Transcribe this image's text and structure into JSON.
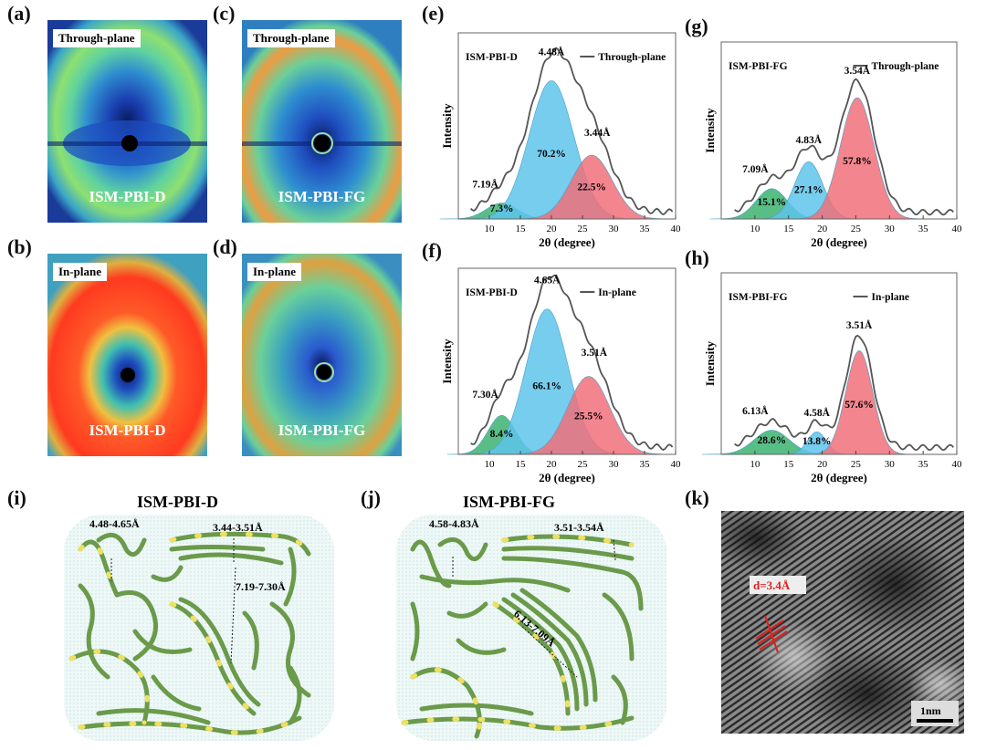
{
  "panels": {
    "a": {
      "label": "(a)",
      "tag": "Through-plane",
      "name": "ISM-PBI-D"
    },
    "b": {
      "label": "(b)",
      "tag": "In-plane",
      "name": "ISM-PBI-D"
    },
    "c": {
      "label": "(c)",
      "tag": "Through-plane",
      "name": "ISM-PBI-FG"
    },
    "d": {
      "label": "(d)",
      "tag": "In-plane",
      "name": "ISM-PBI-FG"
    },
    "e": {
      "label": "(e)"
    },
    "f": {
      "label": "(f)"
    },
    "g": {
      "label": "(g)"
    },
    "h": {
      "label": "(h)"
    },
    "i": {
      "label": "(i)",
      "title": "ISM-PBI-D",
      "d1": "4.48-4.65Å",
      "d2": "3.44-3.51Å",
      "d3": "7.19-7.30Å"
    },
    "j": {
      "label": "(j)",
      "title": "ISM-PBI-FG",
      "d1": "4.58-4.83Å",
      "d2": "3.51-3.54Å",
      "d3": "6.13-7.09Å"
    },
    "k": {
      "label": "(k)",
      "spacing": "d=3.4Å",
      "scale": "1nm"
    }
  },
  "colors": {
    "green": "#3cb371",
    "blue": "#5ec4ea",
    "red": "#f0707a",
    "curve": "#555555"
  },
  "chart_data": [
    {
      "id": "e",
      "type": "line",
      "sample": "ISM-PBI-D",
      "legend": "Through-plane",
      "xlabel": "2θ (degree)",
      "ylabel": "Intensity",
      "xlim": [
        5,
        40
      ],
      "xticks": [
        "10",
        "15",
        "20",
        "25",
        "30",
        "35",
        "40"
      ],
      "peaks": [
        {
          "center": 12,
          "height": 0.09,
          "sigma": 2.5,
          "color": "green",
          "label": "7.3%"
        },
        {
          "center": 20,
          "height": 0.78,
          "sigma": 3.6,
          "color": "blue",
          "label": "70.2%"
        },
        {
          "center": 26.5,
          "height": 0.36,
          "sigma": 3.3,
          "color": "red",
          "label": "22.5%"
        }
      ],
      "d_labels": [
        "7.19Å",
        "4.48Å",
        "3.44Å"
      ]
    },
    {
      "id": "f",
      "type": "line",
      "sample": "ISM-PBI-D",
      "legend": "In-plane",
      "xlabel": "2θ (degree)",
      "ylabel": "Intensity",
      "xlim": [
        5,
        40
      ],
      "xticks": [
        "10",
        "15",
        "20",
        "25",
        "30",
        "35",
        "40"
      ],
      "peaks": [
        {
          "center": 12,
          "height": 0.22,
          "sigma": 2.2,
          "color": "green",
          "label": "8.4%"
        },
        {
          "center": 19.3,
          "height": 0.82,
          "sigma": 3.4,
          "color": "blue",
          "label": "66.1%"
        },
        {
          "center": 26,
          "height": 0.44,
          "sigma": 3.4,
          "color": "red",
          "label": "25.5%"
        }
      ],
      "d_labels": [
        "7.30Å",
        "4.65Å",
        "3.51Å"
      ]
    },
    {
      "id": "g",
      "type": "line",
      "sample": "ISM-PBI-FG",
      "legend": "Through-plane",
      "xlabel": "2θ (degree)",
      "ylabel": "Intensity",
      "xlim": [
        5,
        40
      ],
      "xticks": [
        "10",
        "15",
        "20",
        "25",
        "30",
        "35",
        "40"
      ],
      "peaks": [
        {
          "center": 12.5,
          "height": 0.18,
          "sigma": 2.3,
          "color": "green",
          "label": "15.1%"
        },
        {
          "center": 18,
          "height": 0.34,
          "sigma": 2.1,
          "color": "blue",
          "label": "27.1%"
        },
        {
          "center": 25.2,
          "height": 0.72,
          "sigma": 2.5,
          "color": "red",
          "label": "57.8%"
        }
      ],
      "d_labels": [
        "7.09Å",
        "4.83Å",
        "3.54Å"
      ]
    },
    {
      "id": "h",
      "type": "line",
      "sample": "ISM-PBI-FG",
      "legend": "In-plane",
      "xlabel": "2θ (degree)",
      "ylabel": "Intensity",
      "xlim": [
        5,
        40
      ],
      "xticks": [
        "10",
        "15",
        "20",
        "25",
        "30",
        "35",
        "40"
      ],
      "peaks": [
        {
          "center": 12.5,
          "height": 0.14,
          "sigma": 2.6,
          "color": "green",
          "label": "28.6%"
        },
        {
          "center": 19.2,
          "height": 0.13,
          "sigma": 1.4,
          "color": "blue",
          "label": "13.8%"
        },
        {
          "center": 25.5,
          "height": 0.6,
          "sigma": 2.0,
          "color": "red",
          "label": "57.6%"
        }
      ],
      "d_labels": [
        "6.13Å",
        "4.58Å",
        "3.51Å"
      ]
    }
  ]
}
